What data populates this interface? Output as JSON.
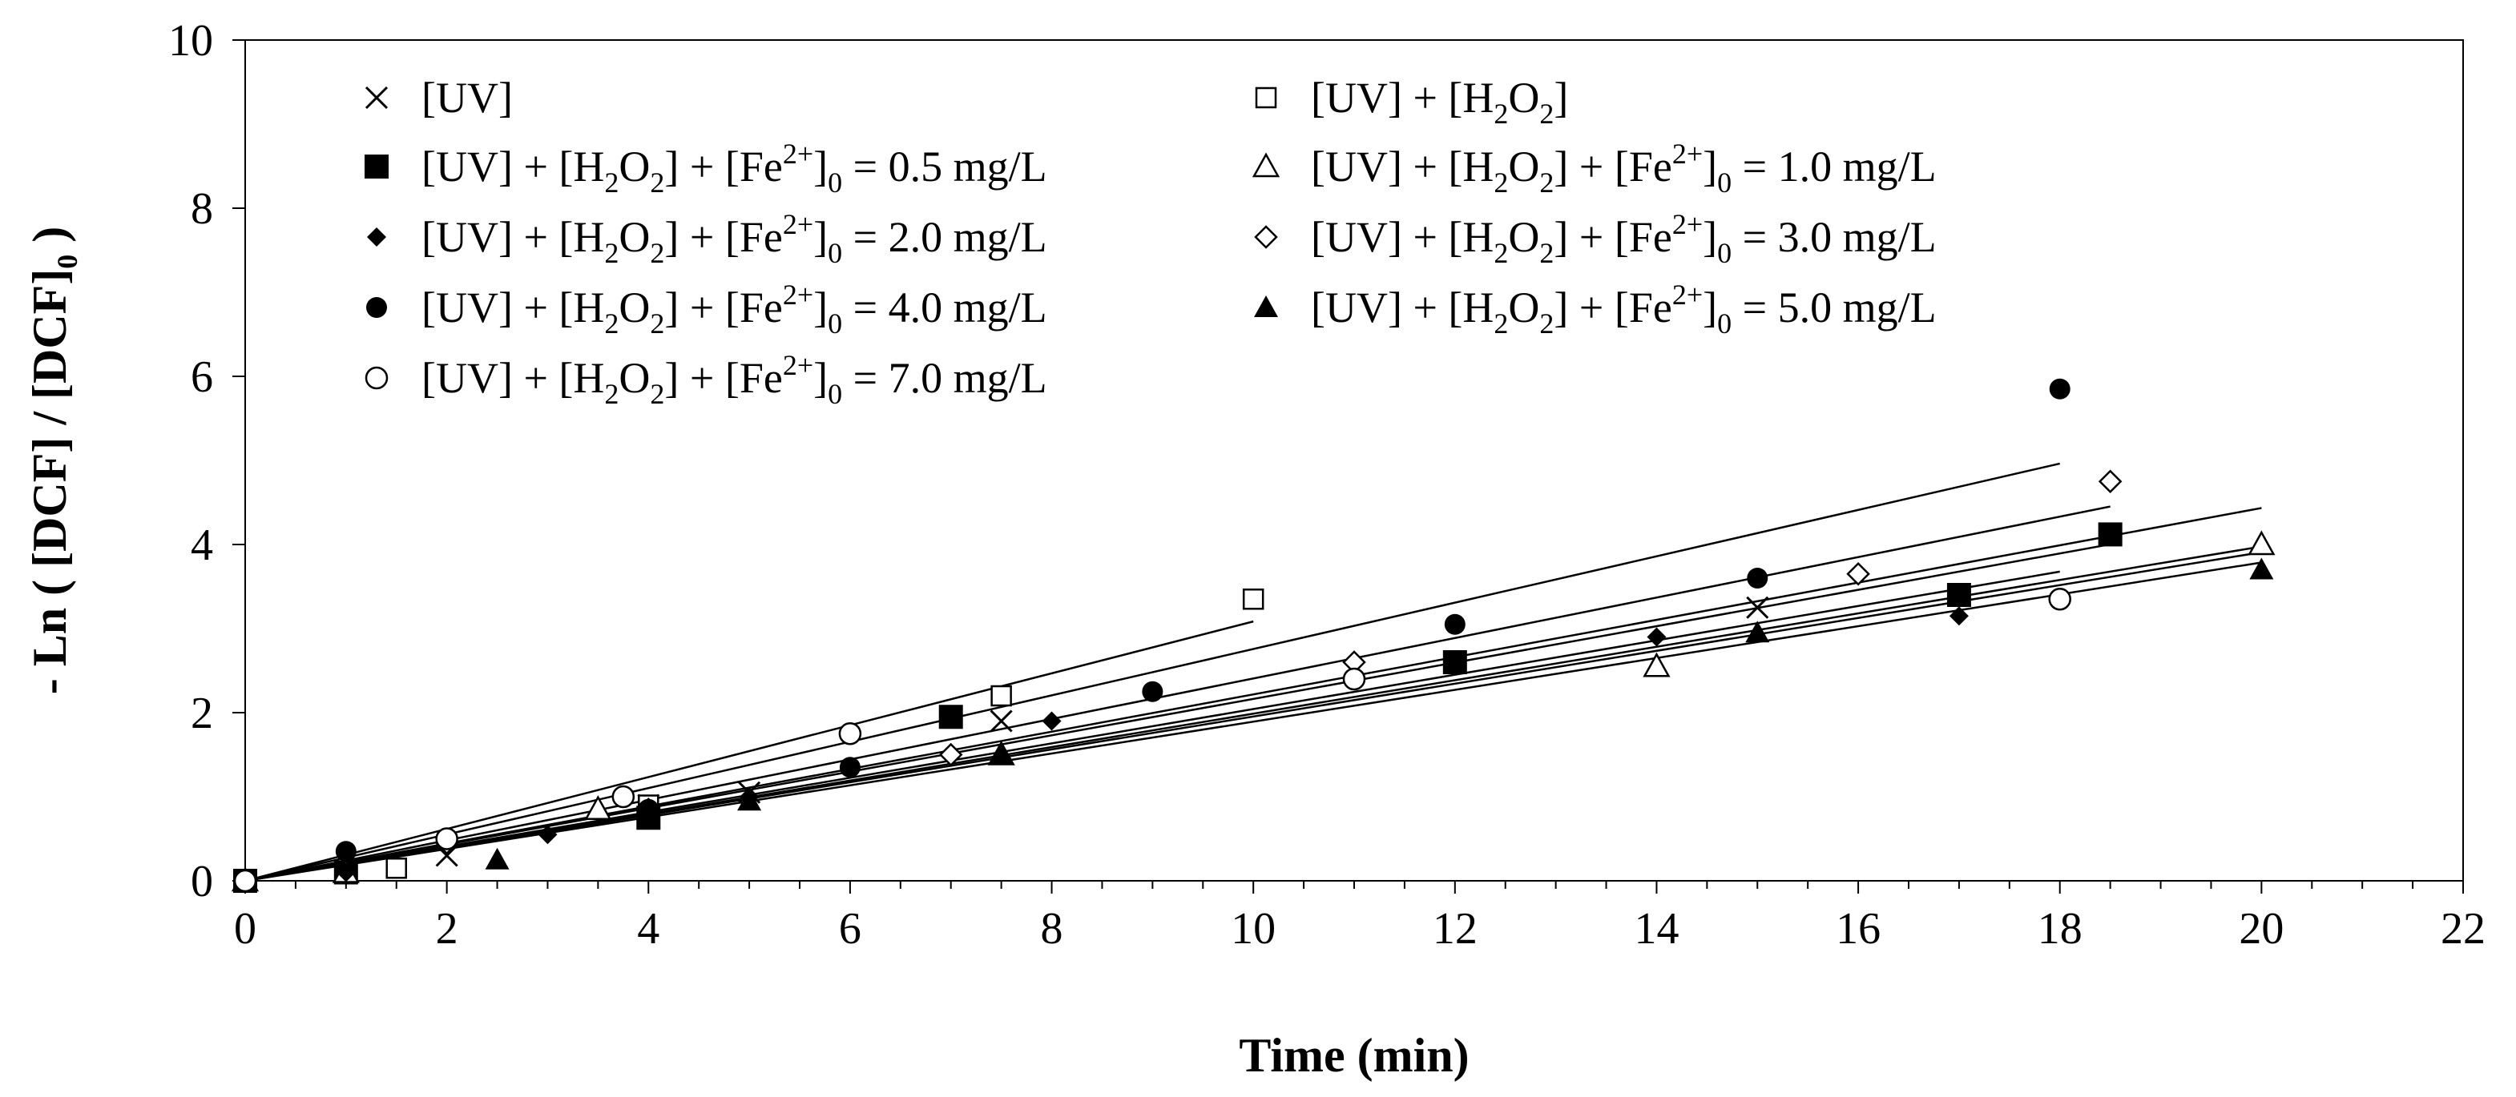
{
  "chart_data": {
    "type": "scatter",
    "title": "",
    "xlabel": "Time (min)",
    "ylabel": {
      "main": "- Ln ( [DCF] / [DCF]",
      "sub": "0",
      "close": " )"
    },
    "xlim": [
      0,
      22
    ],
    "ylim": [
      0,
      10
    ],
    "x_ticks": [
      "0",
      "2",
      "4",
      "6",
      "8",
      "10",
      "12",
      "14",
      "16",
      "18",
      "20",
      "22"
    ],
    "y_ticks": [
      "0",
      "2",
      "4",
      "6",
      "8",
      "10"
    ],
    "grid": false,
    "legend_position": "top-left (inside plot, two columns)",
    "series": [
      {
        "name": "[UV]",
        "legend": [
          {
            "t": "[UV]"
          }
        ],
        "marker": "x",
        "x": [
          0,
          1,
          2,
          4,
          5,
          7.5,
          15
        ],
        "y": [
          0,
          0.1,
          0.3,
          0.9,
          1.05,
          1.9,
          3.25
        ],
        "fit_x_end": 20
      },
      {
        "name": "[UV] + [H2O2]",
        "legend": [
          {
            "t": "[UV] + [H"
          },
          {
            "t": "2",
            "sub": true
          },
          {
            "t": "O"
          },
          {
            "t": "2",
            "sub": true
          },
          {
            "t": "]"
          }
        ],
        "marker": "square-open",
        "x": [
          0,
          1.5,
          4,
          7.5,
          10
        ],
        "y": [
          0,
          0.15,
          0.9,
          2.2,
          3.35
        ],
        "fit_x_end": 10
      },
      {
        "name": "[UV] + [H2O2] + [Fe2+]0 = 0.5 mg/L",
        "legend": [
          {
            "t": "[UV] + [H"
          },
          {
            "t": "2",
            "sub": true
          },
          {
            "t": "O"
          },
          {
            "t": "2",
            "sub": true
          },
          {
            "t": "] + [Fe"
          },
          {
            "t": "2+",
            "sup": true
          },
          {
            "t": "]"
          },
          {
            "t": "0",
            "sub": true
          },
          {
            "t": " = 0.5 mg/L"
          }
        ],
        "marker": "square-filled",
        "x": [
          0,
          1,
          4,
          7,
          12,
          17,
          18.5
        ],
        "y": [
          0,
          0.1,
          0.75,
          1.95,
          2.6,
          3.4,
          4.12
        ],
        "fit_x_end": 18.5
      },
      {
        "name": "[UV] + [H2O2] + [Fe2+]0 = 1.0 mg/L",
        "legend": [
          {
            "t": "[UV] + [H"
          },
          {
            "t": "2",
            "sub": true
          },
          {
            "t": "O"
          },
          {
            "t": "2",
            "sub": true
          },
          {
            "t": "] + [Fe"
          },
          {
            "t": "2+",
            "sup": true
          },
          {
            "t": "]"
          },
          {
            "t": "0",
            "sub": true
          },
          {
            "t": " = 1.0 mg/L"
          }
        ],
        "marker": "triangle-open",
        "x": [
          0,
          1,
          3.5,
          7.5,
          14,
          20
        ],
        "y": [
          0,
          0.1,
          0.85,
          1.5,
          2.55,
          4.0
        ],
        "fit_x_end": 20
      },
      {
        "name": "[UV] + [H2O2] + [Fe2+]0 = 2.0 mg/L",
        "legend": [
          {
            "t": "[UV] + [H"
          },
          {
            "t": "2",
            "sub": true
          },
          {
            "t": "O"
          },
          {
            "t": "2",
            "sub": true
          },
          {
            "t": "] + [Fe"
          },
          {
            "t": "2+",
            "sup": true
          },
          {
            "t": "]"
          },
          {
            "t": "0",
            "sub": true
          },
          {
            "t": " = 2.0 mg/L"
          }
        ],
        "marker": "diamond-filled",
        "x": [
          0,
          1,
          3,
          5,
          8,
          14,
          17
        ],
        "y": [
          0,
          0.1,
          0.55,
          1.0,
          1.9,
          2.9,
          3.15
        ],
        "fit_x_end": 20
      },
      {
        "name": "[UV] + [H2O2] + [Fe2+]0 = 3.0 mg/L",
        "legend": [
          {
            "t": "[UV] + [H"
          },
          {
            "t": "2",
            "sub": true
          },
          {
            "t": "O"
          },
          {
            "t": "2",
            "sub": true
          },
          {
            "t": "] + [Fe"
          },
          {
            "t": "2+",
            "sup": true
          },
          {
            "t": "]"
          },
          {
            "t": "0",
            "sub": true
          },
          {
            "t": " = 3.0 mg/L"
          }
        ],
        "marker": "diamond-open",
        "x": [
          0,
          2,
          4,
          7,
          11,
          16,
          18.5
        ],
        "y": [
          0,
          0.45,
          0.85,
          1.5,
          2.6,
          3.65,
          4.75
        ],
        "fit_x_end": 18.5
      },
      {
        "name": "[UV] + [H2O2] + [Fe2+]0 = 4.0 mg/L",
        "legend": [
          {
            "t": "[UV] + [H"
          },
          {
            "t": "2",
            "sub": true
          },
          {
            "t": "O"
          },
          {
            "t": "2",
            "sub": true
          },
          {
            "t": "] + [Fe"
          },
          {
            "t": "2+",
            "sup": true
          },
          {
            "t": "]"
          },
          {
            "t": "0",
            "sub": true
          },
          {
            "t": " = 4.0 mg/L"
          }
        ],
        "marker": "circle-filled",
        "x": [
          0,
          1,
          4,
          6,
          9,
          12,
          15,
          18
        ],
        "y": [
          0,
          0.35,
          0.85,
          1.35,
          2.25,
          3.05,
          3.6,
          5.85
        ],
        "fit_x_end": 18
      },
      {
        "name": "[UV] + [H2O2] + [Fe2+]0 = 5.0 mg/L",
        "legend": [
          {
            "t": "[UV] + [H"
          },
          {
            "t": "2",
            "sub": true
          },
          {
            "t": "O"
          },
          {
            "t": "2",
            "sub": true
          },
          {
            "t": "] + [Fe"
          },
          {
            "t": "2+",
            "sup": true
          },
          {
            "t": "]"
          },
          {
            "t": "0",
            "sub": true
          },
          {
            "t": " = 5.0 mg/L"
          }
        ],
        "marker": "triangle-filled",
        "x": [
          0,
          2.5,
          5,
          7.5,
          15,
          20
        ],
        "y": [
          0,
          0.25,
          0.95,
          1.5,
          2.95,
          3.7
        ],
        "fit_x_end": 20
      },
      {
        "name": "[UV] + [H2O2] + [Fe2+]0 = 7.0 mg/L",
        "legend": [
          {
            "t": "[UV] + [H"
          },
          {
            "t": "2",
            "sub": true
          },
          {
            "t": "O"
          },
          {
            "t": "2",
            "sub": true
          },
          {
            "t": "] + [Fe"
          },
          {
            "t": "2+",
            "sup": true
          },
          {
            "t": "]"
          },
          {
            "t": "0",
            "sub": true
          },
          {
            "t": " = 7.0 mg/L"
          }
        ],
        "marker": "circle-open",
        "x": [
          0,
          2,
          3.75,
          6,
          11,
          18
        ],
        "y": [
          0,
          0.5,
          1.0,
          1.75,
          2.4,
          3.35
        ],
        "fit_x_end": 18
      }
    ]
  }
}
